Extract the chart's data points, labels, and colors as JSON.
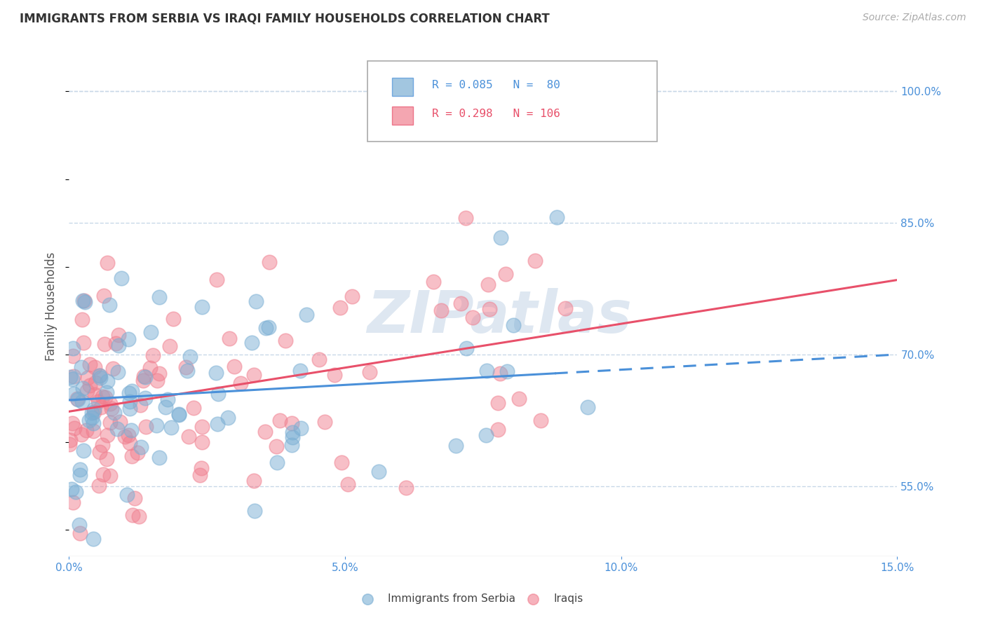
{
  "title": "IMMIGRANTS FROM SERBIA VS IRAQI FAMILY HOUSEHOLDS CORRELATION CHART",
  "source": "Source: ZipAtlas.com",
  "ylabel": "Family Households",
  "xlim": [
    0.0,
    0.15
  ],
  "ylim": [
    0.47,
    1.04
  ],
  "xticks": [
    0.0,
    0.05,
    0.1,
    0.15
  ],
  "xtick_labels": [
    "0.0%",
    "5.0%",
    "10.0%",
    "15.0%"
  ],
  "yticks_right": [
    0.55,
    0.7,
    0.85,
    1.0
  ],
  "ytick_labels_right": [
    "55.0%",
    "70.0%",
    "85.0%",
    "100.0%"
  ],
  "grid_color": "#c8d8e8",
  "background_color": "#ffffff",
  "watermark": "ZIPatlas",
  "watermark_color": "#c8d8e8",
  "serbia_color": "#7bafd4",
  "iraq_color": "#f08090",
  "serbia_R": 0.085,
  "serbia_N": 80,
  "iraq_R": 0.298,
  "iraq_N": 106,
  "serbia_line_color": "#4a90d9",
  "iraq_line_color": "#e8506a",
  "serbia_line_solid_end": 0.085,
  "serbia_line_x0": 0.0,
  "serbia_line_y0": 0.648,
  "serbia_line_x1": 0.15,
  "serbia_line_y1": 0.7,
  "iraq_line_x0": 0.0,
  "iraq_line_y0": 0.635,
  "iraq_line_x1": 0.15,
  "iraq_line_y1": 0.785
}
